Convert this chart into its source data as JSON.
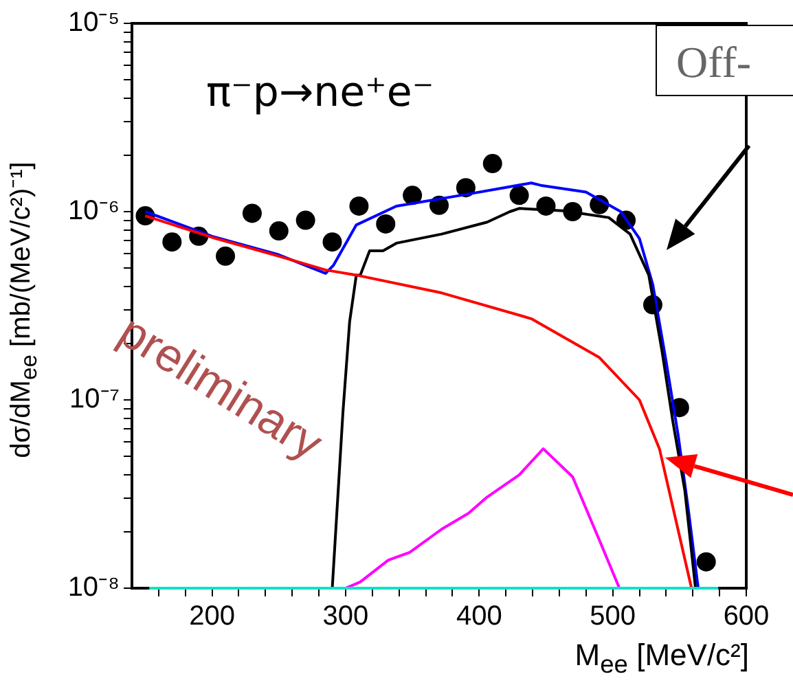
{
  "chart_data": {
    "type": "line",
    "title": "π⁻p→ne⁺e⁻",
    "xlabel": "M$_{ee}$ [MeV/c²]",
    "ylabel": "dσ/dM$_{ee}$ [mb/(MeV/c²)⁻¹]",
    "annotations": [
      "Off-",
      "preliminary"
    ],
    "log": "y",
    "grid": false,
    "legend": false,
    "xlim": [
      140,
      600
    ],
    "xticks": [
      {
        "value": 160,
        "label": null
      },
      {
        "value": 180,
        "label": null
      },
      200,
      {
        "value": 220,
        "label": null
      },
      {
        "value": 240,
        "label": null
      },
      {
        "value": 260,
        "label": null
      },
      {
        "value": 280,
        "label": null
      },
      300,
      {
        "value": 320,
        "label": null
      },
      {
        "value": 340,
        "label": null
      },
      {
        "value": 360,
        "label": null
      },
      {
        "value": 380,
        "label": null
      },
      400,
      {
        "value": 420,
        "label": null
      },
      {
        "value": 440,
        "label": null
      },
      {
        "value": 460,
        "label": null
      },
      {
        "value": 480,
        "label": null
      },
      500,
      {
        "value": 520,
        "label": null
      },
      {
        "value": 540,
        "label": null
      },
      {
        "value": 560,
        "label": null
      },
      {
        "value": 580,
        "label": null
      },
      600
    ],
    "ylim": [
      1e-08,
      1e-05
    ],
    "yticks": [
      {
        "value": 1e-08,
        "label": "10⁻⁸"
      },
      {
        "value": 2e-08,
        "label": null
      },
      {
        "value": 3e-08,
        "label": null
      },
      {
        "value": 4e-08,
        "label": null
      },
      {
        "value": 5e-08,
        "label": null
      },
      {
        "value": 6e-08,
        "label": null
      },
      {
        "value": 7e-08,
        "label": null
      },
      {
        "value": 8e-08,
        "label": null
      },
      {
        "value": 9e-08,
        "label": null
      },
      {
        "value": 1e-07,
        "label": "10⁻⁷"
      },
      {
        "value": 2e-07,
        "label": null
      },
      {
        "value": 3e-07,
        "label": null
      },
      {
        "value": 4e-07,
        "label": null
      },
      {
        "value": 5e-07,
        "label": null
      },
      {
        "value": 6e-07,
        "label": null
      },
      {
        "value": 7e-07,
        "label": null
      },
      {
        "value": 8e-07,
        "label": null
      },
      {
        "value": 9e-07,
        "label": null
      },
      {
        "value": 1e-06,
        "label": "10⁻⁶"
      },
      {
        "value": 2e-06,
        "label": null
      },
      {
        "value": 3e-06,
        "label": null
      },
      {
        "value": 4e-06,
        "label": null
      },
      {
        "value": 5e-06,
        "label": null
      },
      {
        "value": 6e-06,
        "label": null
      },
      {
        "value": 7e-06,
        "label": null
      },
      {
        "value": 8e-06,
        "label": null
      },
      {
        "value": 9e-06,
        "label": null
      },
      {
        "value": 1e-05,
        "label": "10⁻⁵"
      }
    ],
    "series": [
      {
        "color": "#00e5c8",
        "marker": "none",
        "line_style": "solid",
        "x": [
          153,
          579
        ],
        "values": [
          1e-08,
          1e-08
        ]
      },
      {
        "color": "#ff00ff",
        "marker": "none",
        "line_style": "solid",
        "x": [
          300,
          311,
          332,
          348,
          372,
          392,
          406,
          430,
          448,
          470,
          490,
          505
        ],
        "values": [
          1e-08,
          1.08e-08,
          1.41e-08,
          1.55e-08,
          2.06e-08,
          2.5e-08,
          3.05e-08,
          4e-08,
          5.5e-08,
          3.9e-08,
          1.8e-08,
          1e-08
        ]
      },
      {
        "color": "#ff0000",
        "marker": "none",
        "line_style": "solid",
        "x": [
          150,
          200,
          250,
          285,
          308,
          372,
          439,
          490,
          520,
          535,
          545,
          559
        ],
        "values": [
          9.5e-07,
          7.3e-07,
          5.8e-07,
          4.9e-07,
          4.6e-07,
          3.7e-07,
          2.7e-07,
          1.68e-07,
          1e-07,
          5.5e-08,
          2.7e-08,
          1e-08
        ]
      },
      {
        "color": "#000000",
        "marker": "none",
        "line_style": "solid",
        "x": [
          290,
          298,
          303,
          308,
          311,
          318,
          328,
          338,
          372,
          406,
          423,
          430,
          463,
          497,
          513,
          527,
          537,
          545,
          554,
          562
        ],
        "values": [
          1e-08,
          8.6e-08,
          2.6e-07,
          4.6e-07,
          4.6e-07,
          6.2e-07,
          6.2e-07,
          6.8e-07,
          7.6e-07,
          8.8e-07,
          1e-06,
          1.04e-06,
          1.01e-06,
          9.3e-07,
          7.6e-07,
          4.6e-07,
          1.8e-07,
          7.7e-08,
          3.3e-08,
          1e-08
        ]
      },
      {
        "color": "#0000ff",
        "marker": "none",
        "line_style": "solid",
        "x": [
          150,
          200,
          250,
          285,
          291,
          308,
          338,
          389,
          439,
          446,
          480,
          506,
          520,
          530,
          540,
          549,
          557,
          564
        ],
        "values": [
          1e-06,
          7.4e-07,
          5.9e-07,
          4.7e-07,
          5.2e-07,
          8.5e-07,
          1.07e-06,
          1.23e-06,
          1.42e-06,
          1.38e-06,
          1.27e-06,
          1e-06,
          7.2e-07,
          4.1e-07,
          1.6e-07,
          6.5e-08,
          2.5e-08,
          1e-08
        ]
      },
      {
        "type": "scatter",
        "color": "#000000",
        "marker": "circle",
        "x": [
          150,
          170,
          190,
          210,
          230,
          250,
          270,
          290,
          310,
          330,
          350,
          370,
          390,
          410,
          430,
          450,
          470,
          490,
          510,
          530,
          550,
          570
        ],
        "values": [
          9.5e-07,
          6.9e-07,
          7.4e-07,
          5.8e-07,
          9.8e-07,
          7.9e-07,
          9e-07,
          6.9e-07,
          1.07e-06,
          8.6e-07,
          1.22e-06,
          1.08e-06,
          1.34e-06,
          1.8e-06,
          1.22e-06,
          1.07e-06,
          1e-06,
          1.09e-06,
          9e-07,
          3.2e-07,
          9.1e-08,
          1.38e-08
        ]
      }
    ]
  }
}
